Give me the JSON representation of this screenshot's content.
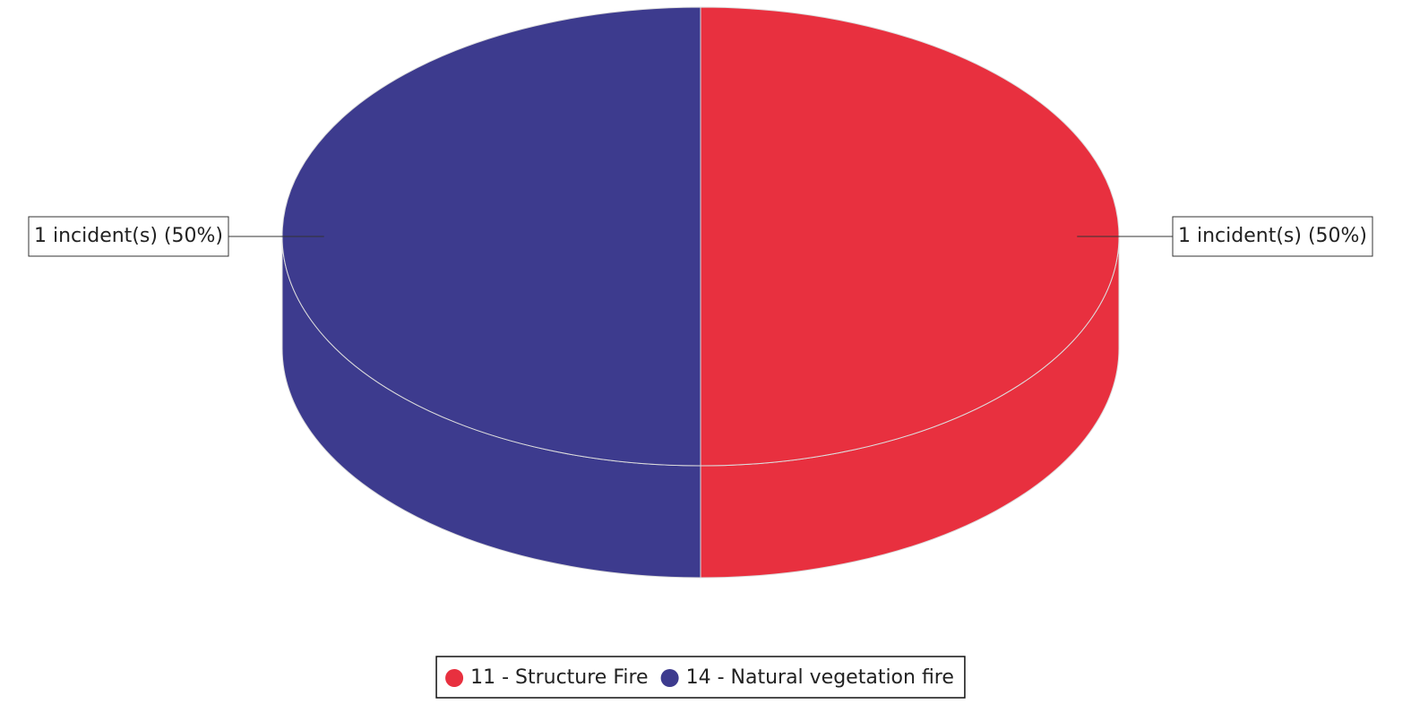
{
  "chart_data": {
    "type": "pie3d",
    "categories": [
      "11 - Structure Fire",
      "14 - Natural vegetation fire"
    ],
    "values": [
      1,
      1
    ],
    "value_labels": [
      "1 incident(s) (50%)",
      "1 incident(s) (50%)"
    ],
    "colors": [
      "#e8303f",
      "#3d3b8e"
    ],
    "legend": "bottom"
  }
}
